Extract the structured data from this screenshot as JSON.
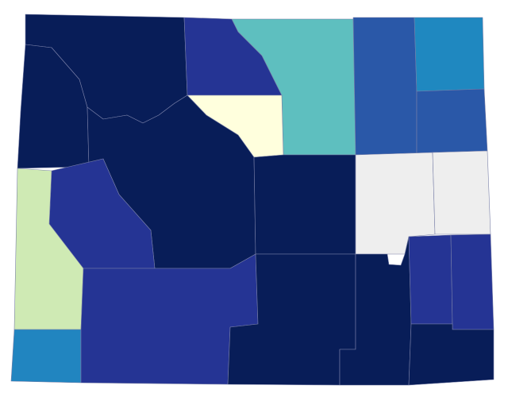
{
  "map": {
    "regions": [
      {
        "color": "#081d58"
      },
      {
        "color": "#081d58"
      },
      {
        "color": "#253494"
      },
      {
        "color": "#5ebfbf"
      },
      {
        "color": "#2a58a8"
      },
      {
        "color": "#1f88c0"
      },
      {
        "color": "#2a58a8"
      },
      {
        "color": "#ffffdd"
      },
      {
        "color": "#081d58"
      },
      {
        "color": "#253494"
      },
      {
        "color": "#cfeab4"
      },
      {
        "color": "#2185c0"
      },
      {
        "color": "#253494"
      },
      {
        "color": "#081d58"
      },
      {
        "color": "#eeeeee"
      },
      {
        "color": "#eeeeee"
      },
      {
        "color": "#081d58"
      },
      {
        "color": "#081d58"
      },
      {
        "color": "#253494"
      },
      {
        "color": "#253494"
      },
      {
        "color": "#081d58"
      }
    ]
  }
}
